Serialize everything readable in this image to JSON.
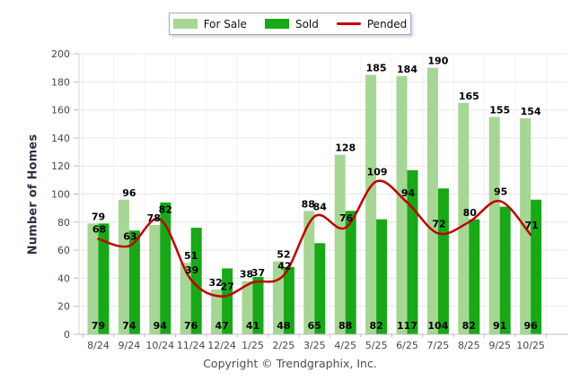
{
  "chart_data": {
    "type": "bar",
    "title": "",
    "categories": [
      "8/24",
      "9/24",
      "10/24",
      "11/24",
      "12/24",
      "1/25",
      "2/25",
      "3/25",
      "4/25",
      "5/25",
      "6/25",
      "7/25",
      "8/25",
      "9/25",
      "10/25"
    ],
    "series": [
      {
        "name": "For Sale",
        "type": "bar",
        "color": "#A6D694",
        "values": [
          79,
          96,
          78,
          51,
          32,
          38,
          52,
          88,
          128,
          185,
          184,
          190,
          165,
          155,
          154
        ]
      },
      {
        "name": "Sold",
        "type": "bar",
        "color": "#18A818",
        "values": [
          79,
          74,
          94,
          76,
          47,
          41,
          48,
          65,
          88,
          82,
          117,
          104,
          82,
          91,
          96
        ]
      },
      {
        "name": "Pended",
        "type": "line",
        "color": "#C00000",
        "values": [
          68,
          63,
          82,
          39,
          27,
          37,
          42,
          84,
          76,
          109,
          94,
          72,
          80,
          95,
          71
        ]
      }
    ],
    "xlabel": "",
    "ylabel": "Number of Homes",
    "ylim": [
      0,
      200
    ],
    "ytick_step": 20,
    "grid": true,
    "legend_position": "top-center"
  },
  "colors": {
    "grid_horizontal": "#E7E7E7",
    "grid_vertical": "#F2F2F2",
    "axis": "#BDBDBD",
    "axis_left": "#DADADA",
    "tick_text": "#3F4757",
    "data_label_text": "#000000",
    "legend_border": "#9CACC6"
  },
  "footer": {
    "copyright": "Copyright © Trendgraphix, Inc."
  }
}
